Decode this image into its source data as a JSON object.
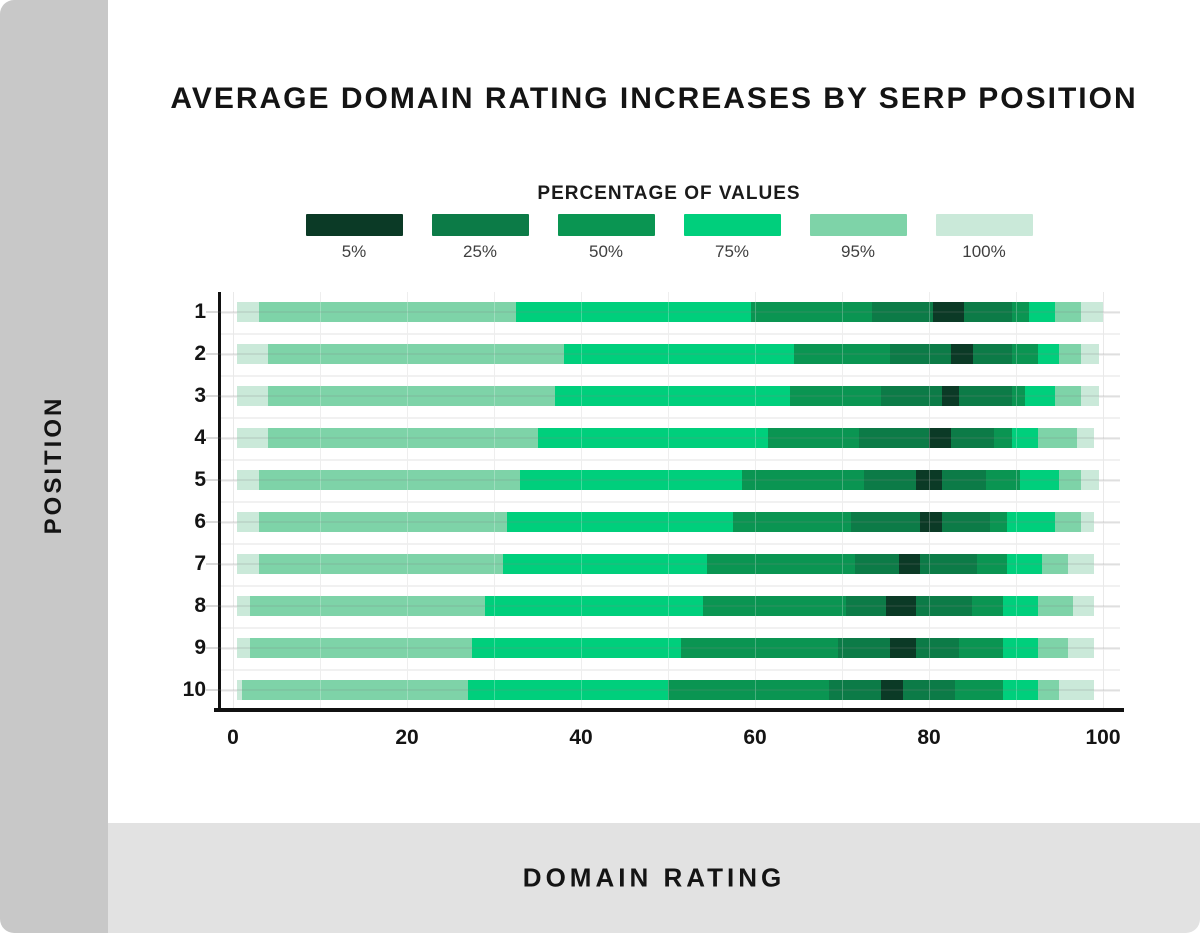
{
  "page": {
    "background": "#ffffff",
    "sidebar_background": "#c8c8c8",
    "footer_background": "#e2e2e2"
  },
  "chart_data": {
    "type": "bar",
    "subtype": "horizontal-nested-percentile-ranges",
    "title": "AVERAGE DOMAIN RATING INCREASES BY SERP POSITION",
    "xlabel": "DOMAIN RATING",
    "ylabel": "POSITION",
    "xlim": [
      0,
      100
    ],
    "x_ticks": [
      "0",
      "20",
      "40",
      "60",
      "80",
      "100"
    ],
    "grid": {
      "vertical_every": 10,
      "horizontal": "row band lines",
      "legend_position": "top-center"
    },
    "legend": {
      "title": "PERCENTAGE OF VALUES",
      "entries": [
        {
          "label": "5%",
          "color": "#0b3a26"
        },
        {
          "label": "25%",
          "color": "#0c7b47"
        },
        {
          "label": "50%",
          "color": "#0a9552"
        },
        {
          "label": "75%",
          "color": "#00cf7c"
        },
        {
          "label": "95%",
          "color": "#7ed3a8"
        },
        {
          "label": "100%",
          "color": "#cae9d9"
        }
      ]
    },
    "rows": [
      {
        "position": "1",
        "p100": [
          0.5,
          100
        ],
        "p95": [
          3,
          97.5
        ],
        "p75": [
          32.5,
          94.5
        ],
        "p50": [
          59.5,
          91.5
        ],
        "p25": [
          73.5,
          89.5
        ],
        "p5": [
          80.5,
          84
        ]
      },
      {
        "position": "2",
        "p100": [
          0.5,
          99.5
        ],
        "p95": [
          4,
          97.5
        ],
        "p75": [
          38,
          95
        ],
        "p50": [
          64.5,
          92.5
        ],
        "p25": [
          75.5,
          89.5
        ],
        "p5": [
          82.5,
          85
        ]
      },
      {
        "position": "3",
        "p100": [
          0.5,
          99.5
        ],
        "p95": [
          4,
          97.5
        ],
        "p75": [
          37,
          94.5
        ],
        "p50": [
          64,
          91
        ],
        "p25": [
          74.5,
          89.5
        ],
        "p5": [
          81.5,
          83.5
        ]
      },
      {
        "position": "4",
        "p100": [
          0.5,
          99
        ],
        "p95": [
          4,
          97
        ],
        "p75": [
          35,
          92.5
        ],
        "p50": [
          61.5,
          89.5
        ],
        "p25": [
          72,
          87.5
        ],
        "p5": [
          80,
          82.5
        ]
      },
      {
        "position": "5",
        "p100": [
          0.5,
          99.5
        ],
        "p95": [
          3,
          97.5
        ],
        "p75": [
          33,
          95
        ],
        "p50": [
          58.5,
          90.5
        ],
        "p25": [
          72.5,
          86.5
        ],
        "p5": [
          78.5,
          81.5
        ]
      },
      {
        "position": "6",
        "p100": [
          0.5,
          99
        ],
        "p95": [
          3,
          97.5
        ],
        "p75": [
          31.5,
          94.5
        ],
        "p50": [
          57.5,
          89
        ],
        "p25": [
          71,
          87
        ],
        "p5": [
          79,
          81.5
        ]
      },
      {
        "position": "7",
        "p100": [
          0.5,
          99
        ],
        "p95": [
          3,
          96
        ],
        "p75": [
          31,
          93
        ],
        "p50": [
          54.5,
          89
        ],
        "p25": [
          71.5,
          85.5
        ],
        "p5": [
          76.5,
          79
        ]
      },
      {
        "position": "8",
        "p100": [
          0.5,
          99
        ],
        "p95": [
          2,
          96.5
        ],
        "p75": [
          29,
          92.5
        ],
        "p50": [
          54,
          88.5
        ],
        "p25": [
          70.5,
          85
        ],
        "p5": [
          75,
          78.5
        ]
      },
      {
        "position": "9",
        "p100": [
          0.5,
          99
        ],
        "p95": [
          2,
          96
        ],
        "p75": [
          27.5,
          92.5
        ],
        "p50": [
          51.5,
          88.5
        ],
        "p25": [
          69.5,
          83.5
        ],
        "p5": [
          75.5,
          78.5
        ]
      },
      {
        "position": "10",
        "p100": [
          0.5,
          99
        ],
        "p95": [
          1,
          95
        ],
        "p75": [
          27,
          92.5
        ],
        "p50": [
          50,
          88.5
        ],
        "p25": [
          68.5,
          83
        ],
        "p5": [
          74.5,
          77
        ]
      }
    ]
  }
}
